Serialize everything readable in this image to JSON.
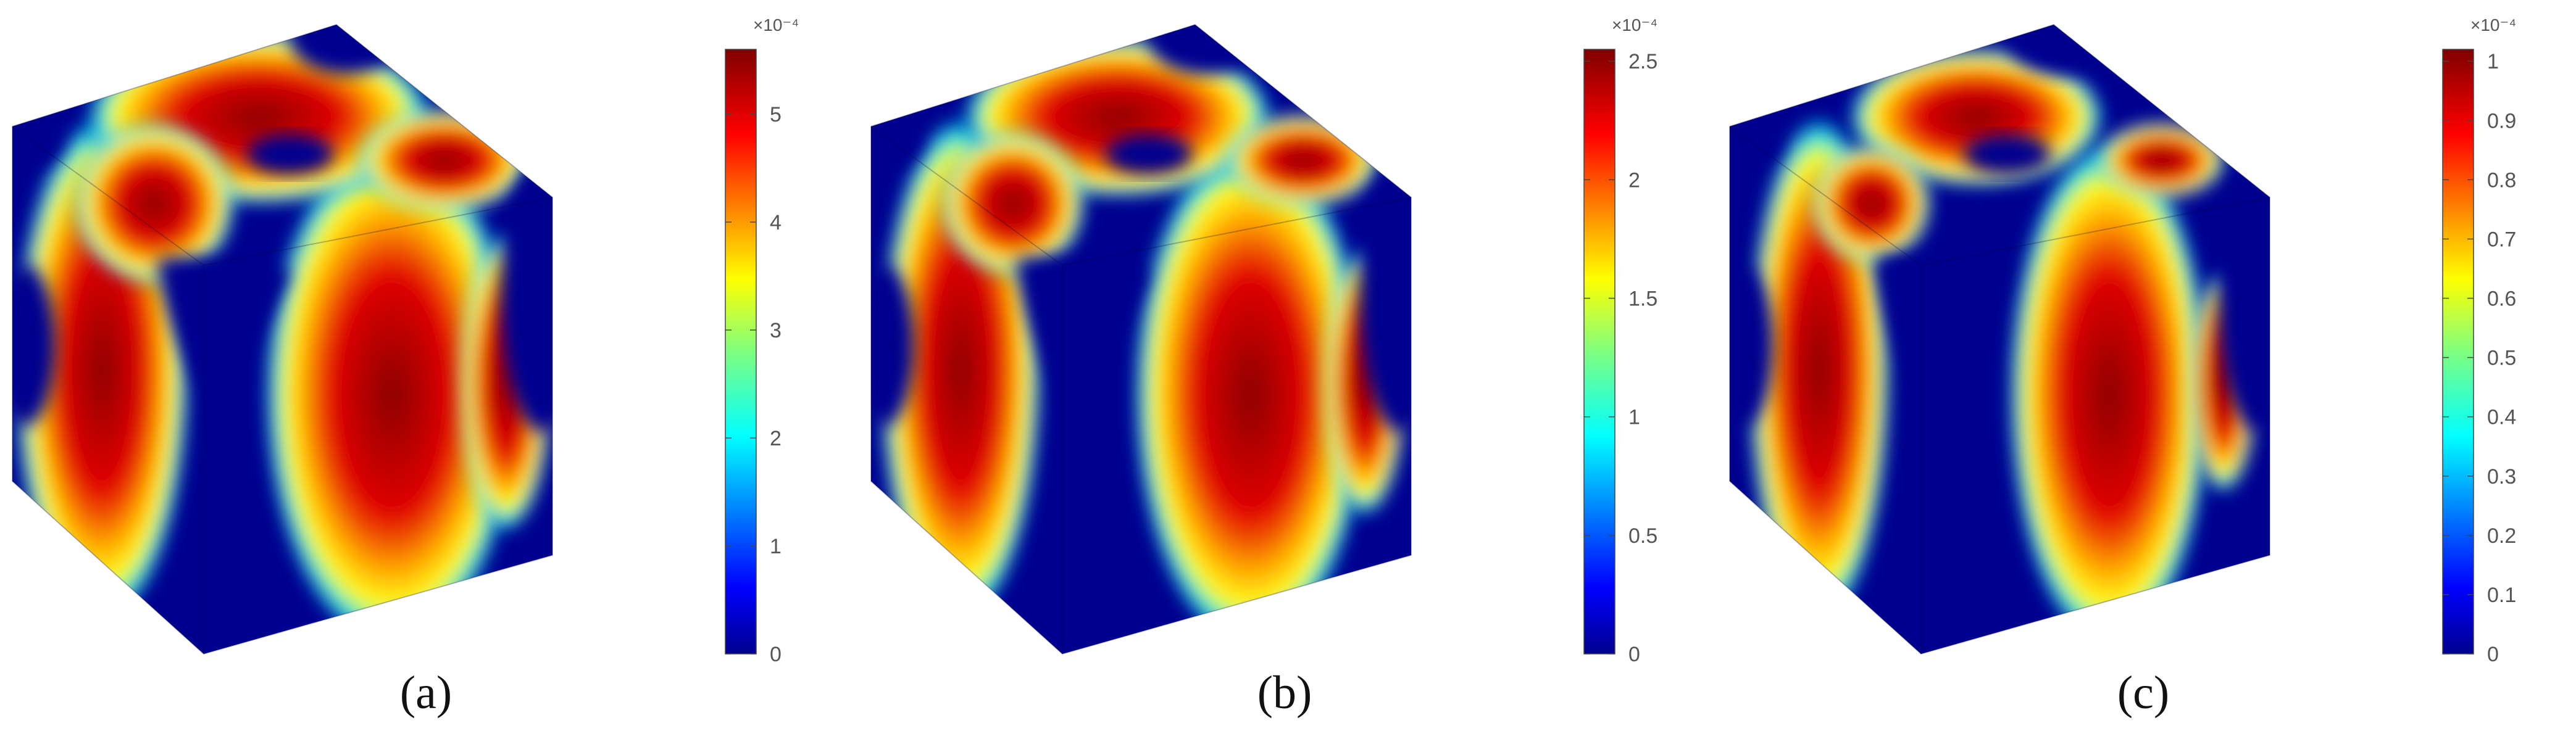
{
  "chart_data": [
    {
      "type": "heatmap",
      "panel": "a",
      "caption": "(a)",
      "colormap": "jet",
      "colorbar": {
        "ticks": [
          0,
          1,
          2,
          3,
          4,
          5
        ],
        "range": [
          0,
          5.6
        ],
        "exponent_label": "×10⁻⁴"
      },
      "intensity": 0.95
    },
    {
      "type": "heatmap",
      "panel": "b",
      "caption": "(b)",
      "colormap": "jet",
      "colorbar": {
        "ticks": [
          0,
          0.5,
          1,
          1.5,
          2,
          2.5
        ],
        "range": [
          0,
          2.55
        ],
        "exponent_label": "×10⁻⁴"
      },
      "intensity": 0.85
    },
    {
      "type": "heatmap",
      "panel": "c",
      "caption": "(c)",
      "colormap": "jet",
      "colorbar": {
        "ticks": [
          0,
          0.1,
          0.2,
          0.3,
          0.4,
          0.5,
          0.6,
          0.7,
          0.8,
          0.9,
          1
        ],
        "range": [
          0,
          1.02
        ],
        "exponent_label": "×10⁻⁴"
      },
      "intensity": 0.7
    }
  ]
}
